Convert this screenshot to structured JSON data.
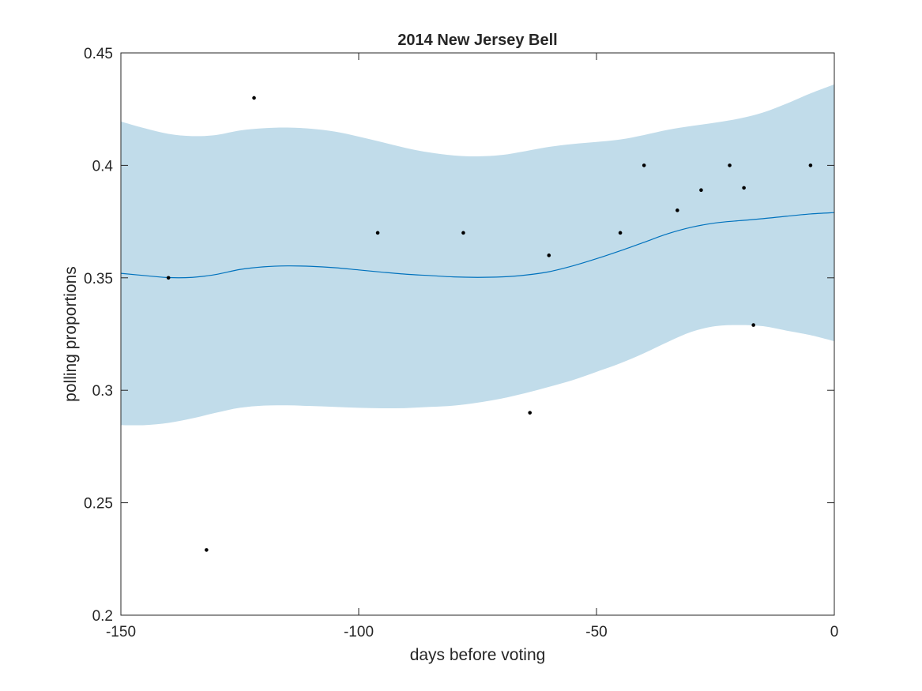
{
  "chart_data": {
    "type": "line",
    "title": "2014 New Jersey Bell",
    "xlabel": "days before voting",
    "ylabel": "polling proportions",
    "xlim": [
      -150,
      0
    ],
    "ylim": [
      0.2,
      0.45
    ],
    "xticks": [
      -150,
      -100,
      -50,
      0
    ],
    "yticks": [
      0.2,
      0.25,
      0.3,
      0.35,
      0.4,
      0.45
    ],
    "xtick_labels": [
      "-150",
      "-100",
      "-50",
      "0"
    ],
    "ytick_labels": [
      "0.2",
      "0.25",
      "0.3",
      "0.35",
      "0.4",
      "0.45"
    ],
    "grid": false,
    "colors": {
      "band": "#c1dcea",
      "line": "#0072bd",
      "points": "#000000",
      "axes": "#262626"
    },
    "band": {
      "x": [
        -150,
        -145,
        -140,
        -135,
        -130,
        -125,
        -120,
        -115,
        -110,
        -105,
        -100,
        -95,
        -90,
        -85,
        -80,
        -75,
        -70,
        -65,
        -60,
        -55,
        -50,
        -45,
        -40,
        -35,
        -30,
        -25,
        -20,
        -15,
        -10,
        -5,
        0
      ],
      "upper": [
        0.4195,
        0.4165,
        0.414,
        0.413,
        0.4135,
        0.4155,
        0.4165,
        0.4168,
        0.4163,
        0.415,
        0.4128,
        0.4103,
        0.4077,
        0.4057,
        0.4044,
        0.404,
        0.4046,
        0.4063,
        0.4082,
        0.4095,
        0.4104,
        0.4115,
        0.4135,
        0.4158,
        0.4175,
        0.419,
        0.4208,
        0.4235,
        0.4275,
        0.432,
        0.436
      ],
      "lower": [
        0.2845,
        0.2845,
        0.2855,
        0.2875,
        0.29,
        0.2922,
        0.2932,
        0.2933,
        0.293,
        0.2926,
        0.2922,
        0.292,
        0.2921,
        0.2926,
        0.2932,
        0.2945,
        0.2963,
        0.2987,
        0.3015,
        0.3045,
        0.3082,
        0.312,
        0.3165,
        0.3215,
        0.326,
        0.3285,
        0.329,
        0.3285,
        0.3265,
        0.3245,
        0.3218
      ]
    },
    "series": [
      {
        "x": [
          -150,
          -145,
          -140,
          -135,
          -130,
          -125,
          -120,
          -115,
          -110,
          -105,
          -100,
          -95,
          -90,
          -85,
          -80,
          -75,
          -70,
          -65,
          -60,
          -55,
          -50,
          -45,
          -40,
          -35,
          -30,
          -25,
          -20,
          -15,
          -10,
          -5,
          0
        ],
        "y": [
          0.352,
          0.351,
          0.3501,
          0.3502,
          0.3515,
          0.3537,
          0.3549,
          0.3553,
          0.3551,
          0.3545,
          0.3535,
          0.3525,
          0.3516,
          0.351,
          0.3504,
          0.3502,
          0.3504,
          0.3512,
          0.3527,
          0.3553,
          0.3585,
          0.362,
          0.3658,
          0.3696,
          0.3725,
          0.3744,
          0.3754,
          0.3763,
          0.3774,
          0.3784,
          0.379
        ]
      }
    ],
    "points": [
      {
        "x": -140,
        "y": 0.35
      },
      {
        "x": -132,
        "y": 0.229
      },
      {
        "x": -122,
        "y": 0.43
      },
      {
        "x": -96,
        "y": 0.37
      },
      {
        "x": -78,
        "y": 0.37
      },
      {
        "x": -64,
        "y": 0.29
      },
      {
        "x": -60,
        "y": 0.36
      },
      {
        "x": -45,
        "y": 0.37
      },
      {
        "x": -40,
        "y": 0.4
      },
      {
        "x": -33,
        "y": 0.38
      },
      {
        "x": -28,
        "y": 0.389
      },
      {
        "x": -22,
        "y": 0.4
      },
      {
        "x": -19,
        "y": 0.39
      },
      {
        "x": -17,
        "y": 0.329
      },
      {
        "x": -5,
        "y": 0.4
      }
    ]
  }
}
